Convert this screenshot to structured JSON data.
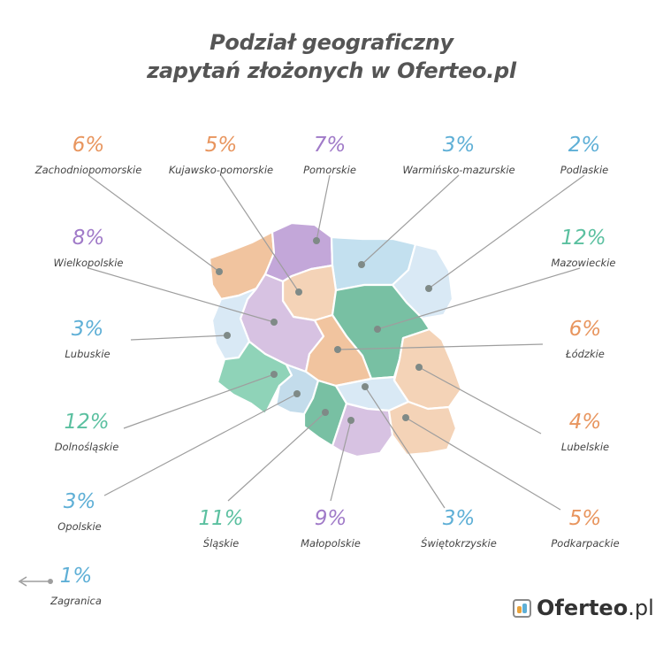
{
  "title_line1": "Podział geograficzny",
  "title_line2": "zapytań złożonych w Oferteo.pl",
  "colors": {
    "orange": "#e8955e",
    "purple": "#a07ac8",
    "blue": "#5eafd6",
    "green": "#5bc0a0",
    "region_orange": "#f1c49f",
    "region_orange_light": "#f4d3b7",
    "region_purple": "#c3a7d9",
    "region_purple_light": "#d7c2e2",
    "region_blue": "#c3e0ef",
    "region_blue_light": "#d9e9f5",
    "region_green": "#78c0a3",
    "region_green_light": "#8fd3b8"
  },
  "regions": [
    {
      "name": "Zachodniopomorskie",
      "value": "6%",
      "color": "orange",
      "icon": "region-dot"
    },
    {
      "name": "Kujawsko-pomorskie",
      "value": "5%",
      "color": "orange",
      "icon": "region-dot"
    },
    {
      "name": "Pomorskie",
      "value": "7%",
      "color": "purple",
      "icon": "region-dot"
    },
    {
      "name": "Warmińsko-mazurskie",
      "value": "3%",
      "color": "blue",
      "icon": "region-dot"
    },
    {
      "name": "Podlaskie",
      "value": "2%",
      "color": "blue",
      "icon": "region-dot"
    },
    {
      "name": "Wielkopolskie",
      "value": "8%",
      "color": "purple",
      "icon": "region-dot"
    },
    {
      "name": "Mazowieckie",
      "value": "12%",
      "color": "green",
      "icon": "region-dot"
    },
    {
      "name": "Lubuskie",
      "value": "3%",
      "color": "blue",
      "icon": "region-dot"
    },
    {
      "name": "Łódzkie",
      "value": "6%",
      "color": "orange",
      "icon": "region-dot"
    },
    {
      "name": "Lubelskie",
      "value": "4%",
      "color": "orange",
      "icon": "region-dot"
    },
    {
      "name": "Dolnośląskie",
      "value": "12%",
      "color": "green",
      "icon": "region-dot"
    },
    {
      "name": "Opolskie",
      "value": "3%",
      "color": "blue",
      "icon": "region-dot"
    },
    {
      "name": "Śląskie",
      "value": "11%",
      "color": "green",
      "icon": "region-dot"
    },
    {
      "name": "Małopolskie",
      "value": "9%",
      "color": "purple",
      "icon": "region-dot"
    },
    {
      "name": "Świętokrzyskie",
      "value": "3%",
      "color": "blue",
      "icon": "region-dot"
    },
    {
      "name": "Podkarpackie",
      "value": "5%",
      "color": "orange",
      "icon": "region-dot"
    }
  ],
  "abroad": {
    "name": "Zagranica",
    "value": "1%",
    "color": "blue",
    "icon": "arrow-left-icon"
  },
  "logo": {
    "bold": "Oferteo",
    "rest": ".pl",
    "icon": "oferteo-logo-icon"
  }
}
